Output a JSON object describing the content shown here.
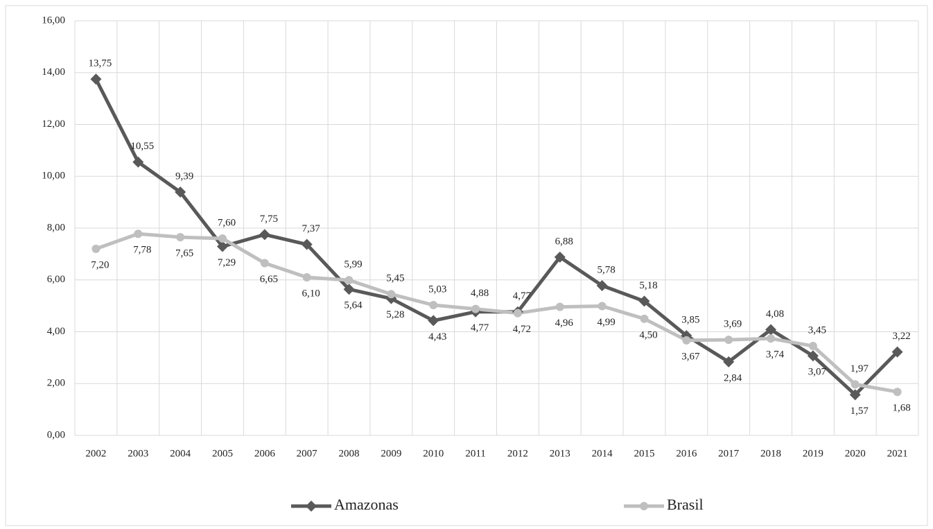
{
  "chart_data": {
    "type": "line",
    "categories": [
      "2002",
      "2003",
      "2004",
      "2005",
      "2006",
      "2007",
      "2008",
      "2009",
      "2010",
      "2011",
      "2012",
      "2013",
      "2014",
      "2015",
      "2016",
      "2017",
      "2018",
      "2019",
      "2020",
      "2021"
    ],
    "series": [
      {
        "name": "Amazonas",
        "color": "#595959",
        "marker": "diamond",
        "values": [
          13.75,
          10.55,
          9.39,
          7.29,
          7.75,
          7.37,
          5.64,
          5.28,
          4.43,
          4.77,
          4.77,
          6.88,
          5.78,
          5.18,
          3.85,
          2.84,
          4.08,
          3.07,
          1.57,
          3.22
        ],
        "value_labels": [
          "13,75",
          "10,55",
          "9,39",
          "7,29",
          "7,75",
          "7,37",
          "5,64",
          "5,28",
          "4,43",
          "4,77",
          "4,77",
          "6,88",
          "5,78",
          "5,18",
          "3,85",
          "2,84",
          "4,08",
          "3,07",
          "1,57",
          "3,22"
        ]
      },
      {
        "name": "Brasil",
        "color": "#bfbfbf",
        "marker": "circle",
        "values": [
          7.2,
          7.78,
          7.65,
          7.6,
          6.65,
          6.1,
          5.99,
          5.45,
          5.03,
          4.88,
          4.72,
          4.96,
          4.99,
          4.5,
          3.67,
          3.69,
          3.74,
          3.45,
          1.97,
          1.68
        ],
        "value_labels": [
          "7,20",
          "7,78",
          "7,65",
          "7,60",
          "6,65",
          "6,10",
          "5,99",
          "5,45",
          "5,03",
          "4,88",
          "4,72",
          "4,96",
          "4,99",
          "4,50",
          "3,67",
          "3,69",
          "3,74",
          "3,45",
          "1,97",
          "1,68"
        ]
      }
    ],
    "ylim": [
      0,
      16
    ],
    "yticks": [
      {
        "value": 0,
        "label": "0,00"
      },
      {
        "value": 2,
        "label": "2,00"
      },
      {
        "value": 4,
        "label": "4,00"
      },
      {
        "value": 6,
        "label": "6,00"
      },
      {
        "value": 8,
        "label": "8,00"
      },
      {
        "value": 10,
        "label": "10,00"
      },
      {
        "value": 12,
        "label": "12,00"
      },
      {
        "value": 14,
        "label": "14,00"
      },
      {
        "value": 16,
        "label": "16,00"
      }
    ],
    "grid": true,
    "legend": "bottom"
  }
}
